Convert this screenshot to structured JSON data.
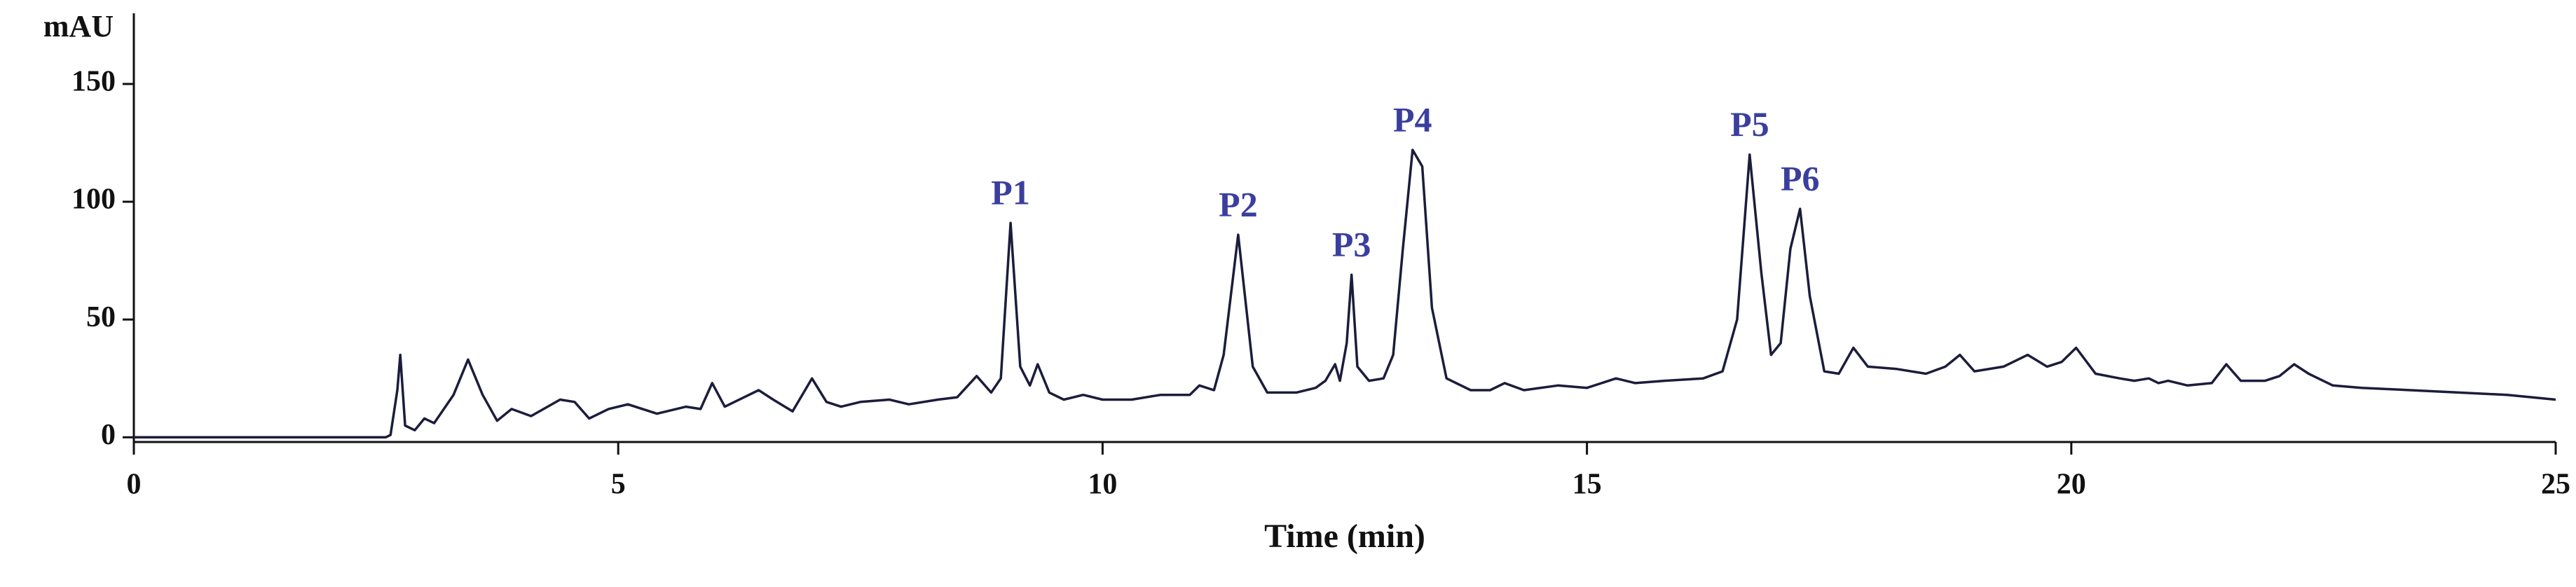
{
  "chart_data": {
    "type": "line",
    "xlabel": "Time (min)",
    "ylabel": "mAU",
    "color": "#1c1c3c",
    "annotation_color": "#3a3f9e",
    "xlim": [
      0,
      25
    ],
    "xticks": [
      0,
      5,
      10,
      15,
      20,
      25
    ],
    "ylim": [
      -2,
      180
    ],
    "yticks": [
      0,
      50,
      100,
      150
    ],
    "x": [
      0,
      1.2,
      2.6,
      2.65,
      2.72,
      2.75,
      2.8,
      2.9,
      3.0,
      3.1,
      3.3,
      3.45,
      3.6,
      3.75,
      3.9,
      4.1,
      4.4,
      4.55,
      4.7,
      4.9,
      5.1,
      5.4,
      5.7,
      5.85,
      5.97,
      6.1,
      6.3,
      6.45,
      6.6,
      6.8,
      7.0,
      7.15,
      7.3,
      7.5,
      7.8,
      8.0,
      8.3,
      8.5,
      8.7,
      8.85,
      8.95,
      9.05,
      9.15,
      9.25,
      9.33,
      9.45,
      9.6,
      9.8,
      10.0,
      10.3,
      10.6,
      10.9,
      11.0,
      11.15,
      11.25,
      11.4,
      11.55,
      11.7,
      12.0,
      12.2,
      12.3,
      12.4,
      12.45,
      12.52,
      12.57,
      12.63,
      12.75,
      12.9,
      13.0,
      13.1,
      13.2,
      13.3,
      13.4,
      13.55,
      13.8,
      14.0,
      14.15,
      14.35,
      14.7,
      15.0,
      15.3,
      15.5,
      15.8,
      16.2,
      16.4,
      16.55,
      16.68,
      16.8,
      16.9,
      17.0,
      17.1,
      17.2,
      17.3,
      17.45,
      17.6,
      17.75,
      17.9,
      18.2,
      18.5,
      18.7,
      18.85,
      19.0,
      19.3,
      19.55,
      19.75,
      19.9,
      20.05,
      20.25,
      20.5,
      20.65,
      20.8,
      20.9,
      21.0,
      21.2,
      21.45,
      21.6,
      21.75,
      22.0,
      22.15,
      22.3,
      22.45,
      22.7,
      23.0,
      23.5,
      24.0,
      24.5,
      25.0
    ],
    "values": [
      0,
      0,
      0,
      1,
      20,
      35,
      5,
      3,
      8,
      6,
      18,
      33,
      18,
      7,
      12,
      9,
      16,
      15,
      8,
      12,
      14,
      10,
      13,
      12,
      23,
      13,
      17,
      20,
      16,
      11,
      25,
      15,
      13,
      15,
      16,
      14,
      16,
      17,
      26,
      19,
      25,
      91,
      30,
      22,
      31,
      19,
      16,
      18,
      16,
      16,
      18,
      18,
      22,
      20,
      35,
      86,
      30,
      19,
      19,
      21,
      24,
      31,
      24,
      40,
      69,
      30,
      24,
      25,
      35,
      80,
      122,
      115,
      55,
      25,
      20,
      20,
      23,
      20,
      22,
      21,
      25,
      23,
      24,
      25,
      28,
      50,
      120,
      70,
      35,
      40,
      80,
      97,
      60,
      28,
      27,
      38,
      30,
      29,
      27,
      30,
      35,
      28,
      30,
      35,
      30,
      32,
      38,
      27,
      25,
      24,
      25,
      23,
      24,
      22,
      23,
      31,
      24,
      24,
      26,
      31,
      27,
      22,
      21,
      20,
      19,
      18,
      16
    ],
    "peaks": [
      {
        "label": "P1",
        "x": 9.05,
        "y": 91
      },
      {
        "label": "P2",
        "x": 11.4,
        "y": 86
      },
      {
        "label": "P3",
        "x": 12.57,
        "y": 69
      },
      {
        "label": "P4",
        "x": 13.2,
        "y": 122
      },
      {
        "label": "P5",
        "x": 16.68,
        "y": 120
      },
      {
        "label": "P6",
        "x": 17.2,
        "y": 97
      }
    ]
  }
}
